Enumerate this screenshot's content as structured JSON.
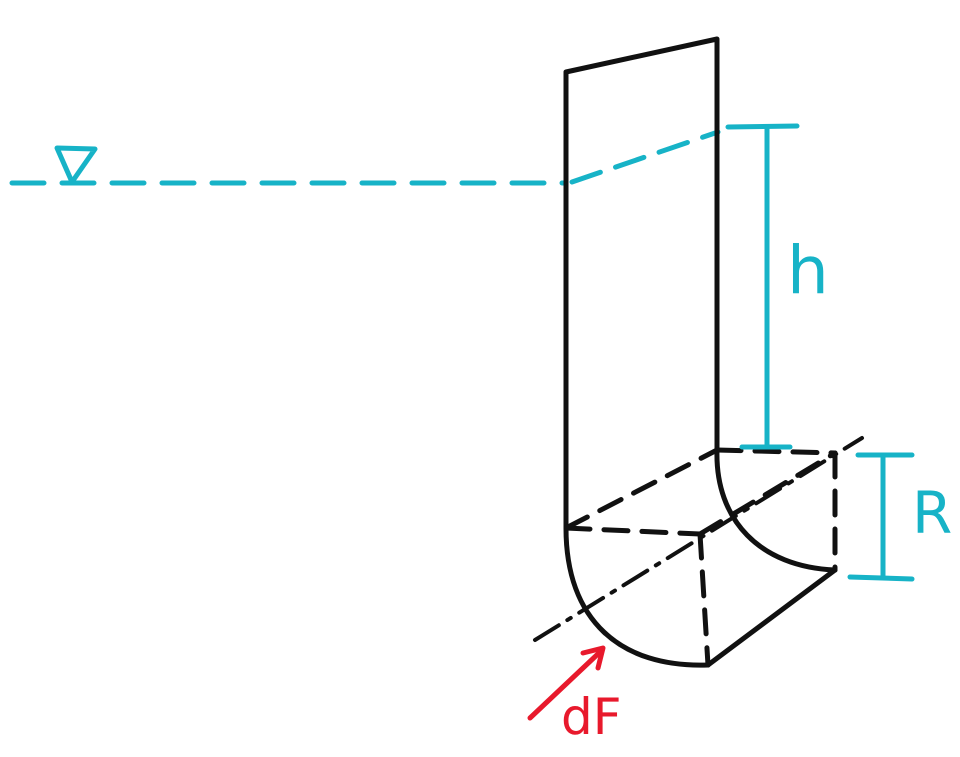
{
  "colors": {
    "ink": "#111111",
    "water": "#17b3c7",
    "force": "#e8192c"
  },
  "labels": {
    "depth": "h",
    "radius": "R",
    "force": "dF"
  },
  "icons": {
    "free_surface": "water-surface-triangle-icon"
  }
}
